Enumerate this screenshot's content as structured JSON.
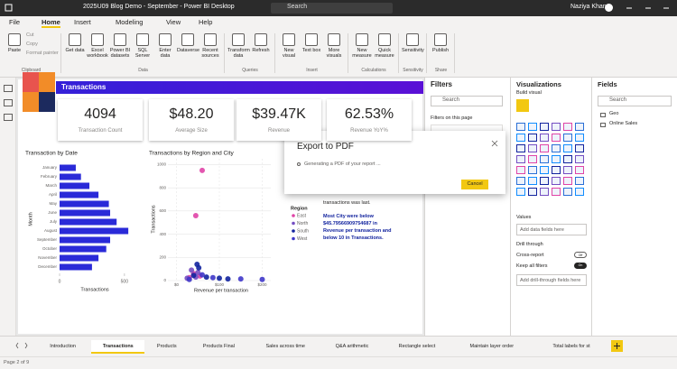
{
  "title_bar": {
    "title": "2025U09 Blog Demo - September - Power BI Desktop",
    "search": "Search",
    "user": "Naziya Khan"
  },
  "menu": {
    "tabs": [
      "File",
      "Home",
      "Insert",
      "Modeling",
      "View",
      "Help"
    ],
    "active": "Home"
  },
  "ribbon": {
    "groups": [
      {
        "label": "Clipboard",
        "large": [
          "Paste"
        ],
        "small": [
          "Cut",
          "Copy",
          "Format painter"
        ]
      },
      {
        "label": "Data",
        "large": [
          "Get data",
          "Excel workbook",
          "Power BI datasets",
          "SQL Server",
          "Enter data",
          "Dataverse",
          "Recent sources"
        ]
      },
      {
        "label": "Queries",
        "large": [
          "Transform data",
          "Refresh"
        ]
      },
      {
        "label": "Insert",
        "large": [
          "New visual",
          "Text box",
          "More visuals"
        ]
      },
      {
        "label": "Calculations",
        "large": [
          "New measure",
          "Quick measure"
        ]
      },
      {
        "label": "Sensitivity",
        "large": [
          "Sensitivity"
        ]
      },
      {
        "label": "Share",
        "large": [
          "Publish"
        ]
      }
    ]
  },
  "report": {
    "banner": "Transactions",
    "cards": [
      {
        "value": "4094",
        "label": "Transaction Count"
      },
      {
        "value": "$48.20",
        "label": "Average Size"
      },
      {
        "value": "$39.47K",
        "label": "Revenue"
      },
      {
        "value": "62.53%",
        "label": "Revenue YoY%"
      }
    ],
    "bar_chart": {
      "type": "bar",
      "title": "Transaction by Date",
      "x_label": "Transactions",
      "y_label": "Month",
      "categories": [
        "January",
        "February",
        "March",
        "April",
        "May",
        "June",
        "July",
        "August",
        "September",
        "October",
        "November",
        "December"
      ],
      "values": [
        125,
        165,
        230,
        300,
        380,
        390,
        440,
        530,
        390,
        360,
        300,
        250
      ],
      "color": "#2a2ad8",
      "xlim": [
        0,
        550
      ],
      "xticks": [
        0,
        500
      ]
    },
    "scatter": {
      "type": "scatter",
      "title": "Transactions by Region and City",
      "x_label": "Revenue per transaction",
      "y_label": "Transactions",
      "legend_title": "Region",
      "series": [
        {
          "name": "East",
          "color": "#e044a7",
          "x": [
            60,
            45,
            40,
            55,
            30
          ],
          "y": [
            950,
            560,
            60,
            40,
            25
          ]
        },
        {
          "name": "North",
          "color": "#744ec2",
          "x": [
            35,
            50,
            45,
            25
          ],
          "y": [
            90,
            70,
            30,
            20
          ]
        },
        {
          "name": "South",
          "color": "#12239e",
          "x": [
            48,
            52,
            70,
            100,
            120,
            40
          ],
          "y": [
            140,
            110,
            30,
            20,
            15,
            45
          ]
        },
        {
          "name": "West",
          "color": "#3f37c9",
          "x": [
            60,
            85,
            150,
            200,
            30
          ],
          "y": [
            50,
            25,
            15,
            10,
            10
          ]
        }
      ],
      "xlim": [
        -20,
        220
      ],
      "xticks": [
        {
          "value": 0,
          "label": "$0"
        },
        {
          "value": 100,
          "label": "$100"
        },
        {
          "value": 200,
          "label": "$200"
        }
      ],
      "ylim": [
        0,
        1050
      ],
      "yticks": [
        0,
        200,
        400,
        600,
        800,
        1000
      ],
      "grid": true
    },
    "text_box": {
      "cut_line": "transactions was last.",
      "summary": "Most City were below $45.79566909754687 in Revenue per transaction and below 10 in Transactions."
    }
  },
  "dialog": {
    "title": "Export to PDF",
    "message": "Generating a PDF of your report ...",
    "button": "Cancel"
  },
  "filters": {
    "title": "Filters",
    "search": "Search",
    "section": "Filters on this page"
  },
  "visualizations": {
    "title": "Visualizations",
    "subtitle": "Build visual",
    "values": "Values",
    "values_hint": "Add data fields here",
    "drill": "Drill through",
    "cross_report": "Cross-report",
    "cross_state": "Off",
    "keep_filters": "Keep all filters",
    "keep_state": "On",
    "drill_hint": "Add drill-through fields here"
  },
  "fields": {
    "title": "Fields",
    "search": "Search",
    "tables": [
      "Geo",
      "Online Sales"
    ]
  },
  "page_tabs": {
    "tabs": [
      "Introduction",
      "Transactions",
      "Products",
      "Products Final",
      "Sales across time",
      "Q&A arithmetic",
      "Rectangle select",
      "Maintain layer order",
      "Total labels for st"
    ],
    "active": 1
  },
  "status": "Page 2 of 9"
}
